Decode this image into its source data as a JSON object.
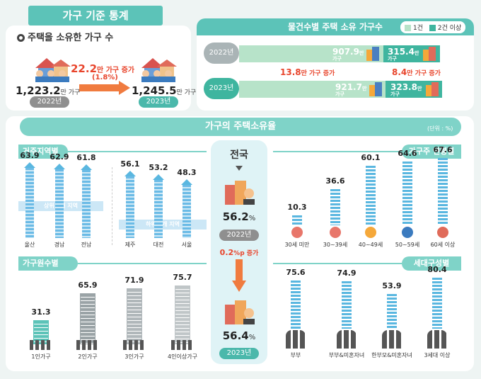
{
  "title": "가구 기준 통계",
  "housing_households": {
    "heading": "주택을 소유한 가구 수",
    "v2022": "1,223.2",
    "v2023": "1,245.5",
    "unit": "만 가구",
    "increase": "22.2",
    "increase_unit": "만 가구 증가",
    "increase_pct": "(1.8%)",
    "year2022": "2022년",
    "year2023": "2023년"
  },
  "by_count": {
    "heading": "물건수별 주택 소유 가구수",
    "legend1": "1건",
    "legend2": "2건 이상",
    "y2022": "2022년",
    "y2023": "2023년",
    "one_2022": "907.9",
    "multi_2022": "315.4",
    "one_2023": "921.7",
    "multi_2023": "323.8",
    "unit_man": "만",
    "unit_ga": "가구",
    "inc1": "13.8",
    "inc2": "8.4",
    "inc_unit": "만 가구 증가"
  },
  "rate": {
    "heading": "가구의 주택소유율",
    "unit_note": "(단위 : %)",
    "nation": "전국",
    "v2022": "56.2",
    "v2023": "56.4",
    "pct": "%",
    "year2022": "2022년",
    "year2023": "2023년",
    "inc": "0.2",
    "inc_unit": "%p 증가"
  },
  "colors": {
    "teal": "#5cc3b8",
    "blue": "#5ab7e0",
    "red": "#e8452c",
    "gray": "#8f8f8f"
  },
  "chart_data": [
    {
      "type": "bar",
      "title": "거주지역별",
      "categories": [
        "울산",
        "경남",
        "전남",
        "제주",
        "대전",
        "서울"
      ],
      "values": [
        63.9,
        62.9,
        61.8,
        56.1,
        53.2,
        48.3
      ],
      "top_label": "상위 3개 지역",
      "bottom_label": "하위 3개 지역"
    },
    {
      "type": "bar",
      "title": "가구주 연령별",
      "categories": [
        "30세 미만",
        "30~39세",
        "40~49세",
        "50~59세",
        "60세 이상"
      ],
      "values": [
        10.3,
        36.6,
        60.1,
        64.6,
        67.6
      ]
    },
    {
      "type": "bar",
      "title": "가구원수별",
      "categories": [
        "1인가구",
        "2인가구",
        "3인가구",
        "4인이상가구"
      ],
      "values": [
        31.3,
        65.9,
        71.9,
        75.7
      ]
    },
    {
      "type": "bar",
      "title": "세대구성별",
      "categories": [
        "부부",
        "부부&미혼자녀",
        "한부모&미혼자녀",
        "3세대 이상"
      ],
      "values": [
        75.6,
        74.9,
        53.9,
        80.4
      ]
    }
  ]
}
